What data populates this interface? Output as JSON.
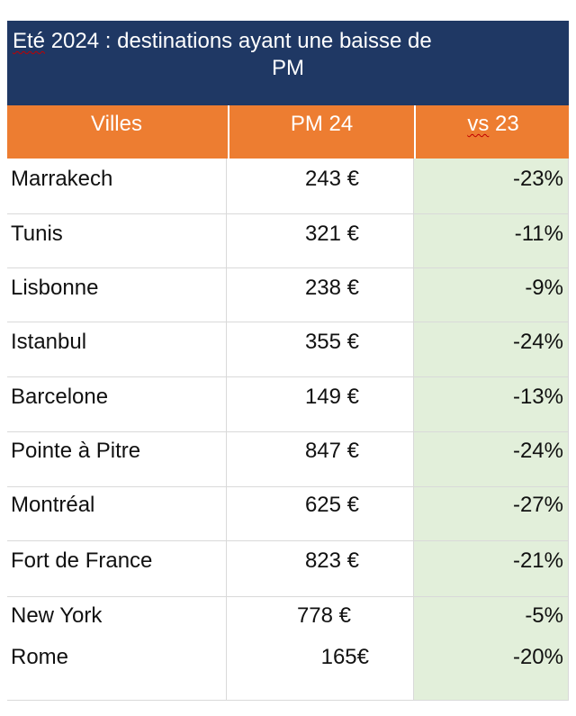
{
  "title": {
    "line1_word1": "Eté",
    "line1_rest": " 2024 : destinations ayant une baisse de",
    "line2": "PM"
  },
  "headers": {
    "city": "Villes",
    "price": "PM 24",
    "var_word1": "vs",
    "var_rest": " 23"
  },
  "rows": [
    {
      "city": "Marrakech",
      "price": "243 €",
      "var": "-23%"
    },
    {
      "city": "Tunis",
      "price": "321 €",
      "var": "-11%"
    },
    {
      "city": "Lisbonne",
      "price": "238 €",
      "var": "-9%"
    },
    {
      "city": "Istanbul",
      "price": "355 €",
      "var": "-24%"
    },
    {
      "city": "Barcelone",
      "price": "149 €",
      "var": "-13%"
    },
    {
      "city": "Pointe à Pitre",
      "price": "847 €",
      "var": "-24%"
    },
    {
      "city": "Montréal",
      "price": "625 €",
      "var": "-27%"
    },
    {
      "city": "Fort de France",
      "price": "823 €",
      "var": "-21%"
    },
    {
      "city": "New York",
      "price": "778 €",
      "var": "-5%"
    },
    {
      "city": "Rome",
      "price": "165€",
      "var": "-20%"
    }
  ],
  "colors": {
    "title_bg": "#1f3864",
    "header_bg": "#ed7d31",
    "variation_bg": "#e2efda"
  }
}
